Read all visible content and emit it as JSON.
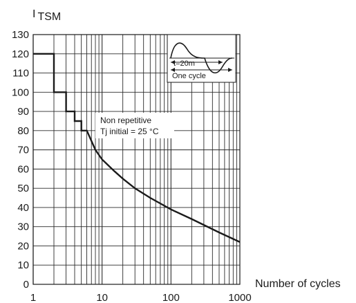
{
  "chart_data": {
    "type": "line",
    "ylabel_prefix": "I",
    "ylabel_sub": "TSM",
    "xlabel": "Number of cycles",
    "xscale": "log",
    "xlim": [
      1,
      1000
    ],
    "ylim": [
      0,
      130
    ],
    "grid": true,
    "x_ticks": [
      1,
      10,
      100,
      1000
    ],
    "x_tick_labels": [
      "1",
      "10",
      "100",
      "1000"
    ],
    "y_ticks": [
      0,
      10,
      20,
      30,
      40,
      50,
      60,
      70,
      80,
      90,
      100,
      110,
      120,
      130
    ],
    "y_tick_labels": [
      "0",
      "10",
      "20",
      "30",
      "40",
      "50",
      "60",
      "70",
      "80",
      "90",
      "100",
      "110",
      "120",
      "130"
    ],
    "series": [
      {
        "color": "#1a1a1a",
        "x": [
          1,
          2,
          2,
          3,
          3,
          4,
          4,
          5,
          5,
          6,
          8,
          10,
          15,
          20,
          30,
          50,
          100,
          200,
          500,
          1000
        ],
        "y": [
          120,
          120,
          100,
          100,
          90,
          90,
          85,
          85,
          80,
          80,
          70,
          65,
          59,
          55,
          50,
          45,
          39,
          34,
          27,
          22
        ]
      }
    ],
    "annotation": {
      "line1": "Non repetitive",
      "line2": "Tj initial = 25 °C"
    },
    "inset": {
      "period_label": "t=20m",
      "cycle_label": "One cycle"
    }
  }
}
